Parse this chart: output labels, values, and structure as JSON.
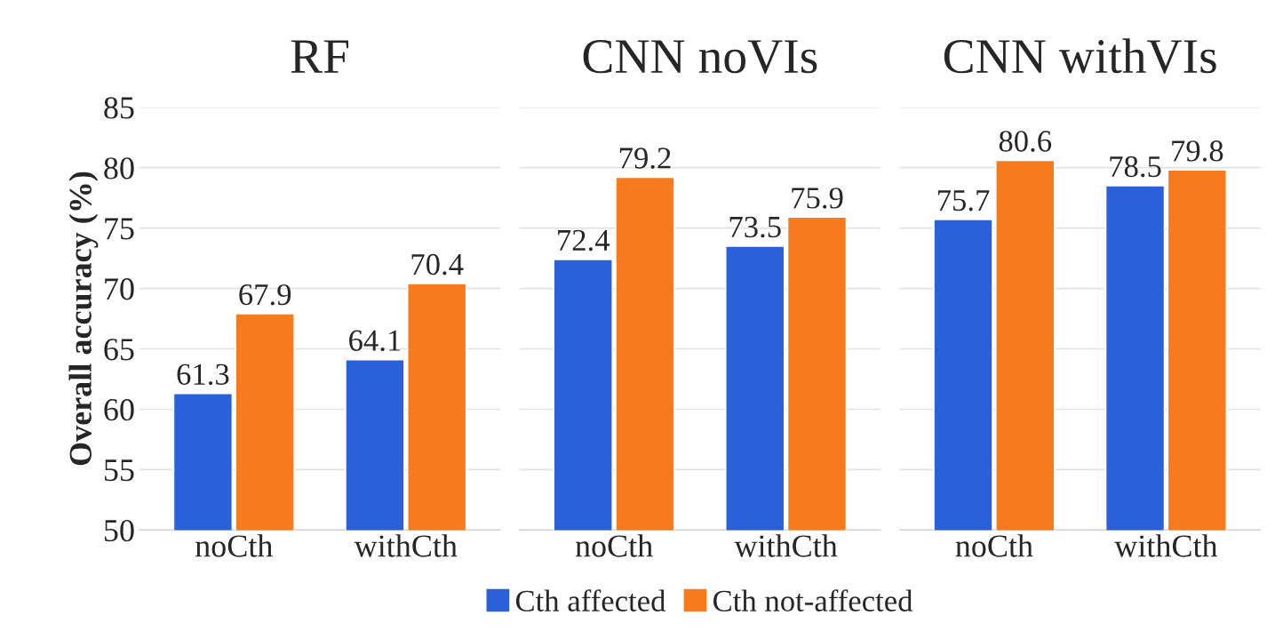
{
  "chart_data": [
    {
      "type": "bar",
      "title": "RF",
      "ylabel": "Overall accuracy (%)",
      "categories": [
        "noCth",
        "withCth"
      ],
      "ylim": [
        50,
        85
      ],
      "yticks": [
        50,
        55,
        60,
        65,
        70,
        75,
        80,
        85
      ],
      "grid": "y",
      "data_labels": true,
      "series": [
        {
          "color": "#2a60d9",
          "values": [
            61.3,
            64.1
          ]
        },
        {
          "color": "#f77b1c",
          "values": [
            67.9,
            70.4
          ]
        }
      ]
    },
    {
      "type": "bar",
      "title": "CNN noVIs",
      "categories": [
        "noCth",
        "withCth"
      ],
      "ylim": [
        50,
        85
      ],
      "yticks": [
        50,
        55,
        60,
        65,
        70,
        75,
        80,
        85
      ],
      "grid": "y",
      "data_labels": true,
      "tick_labels": "x",
      "legend": "bottom",
      "series": [
        {
          "name": "Cth affected",
          "color": "#2a60d9",
          "values": [
            72.4,
            73.5
          ]
        },
        {
          "name": "Cth not-affected",
          "color": "#f77b1c",
          "values": [
            79.2,
            75.9
          ]
        }
      ]
    },
    {
      "type": "bar",
      "title": "CNN withVIs",
      "categories": [
        "noCth",
        "withCth"
      ],
      "ylim": [
        50,
        85
      ],
      "yticks": [
        50,
        55,
        60,
        65,
        70,
        75,
        80,
        85
      ],
      "grid": "y",
      "data_labels": true,
      "tick_labels": "x",
      "series": [
        {
          "color": "#2a60d9",
          "values": [
            75.7,
            78.5
          ]
        },
        {
          "color": "#f77b1c",
          "values": [
            80.6,
            79.8
          ]
        }
      ]
    }
  ]
}
